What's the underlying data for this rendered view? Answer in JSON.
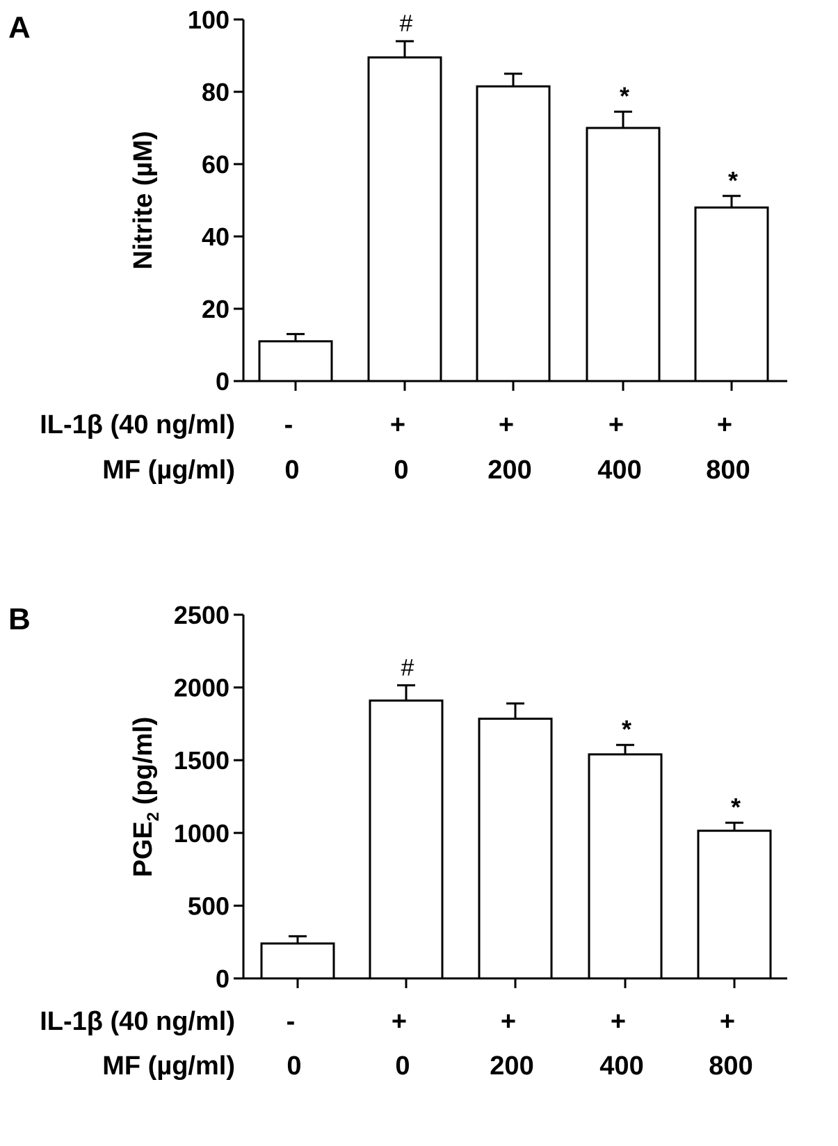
{
  "chart_data": [
    {
      "type": "bar",
      "panel_label": "A",
      "ylabel": "Nitrite (µM)",
      "ylim": [
        0,
        100
      ],
      "yticks": [
        0,
        20,
        40,
        60,
        80,
        100
      ],
      "row_labels": [
        "IL-1β (40 ng/ml)",
        "MF (µg/ml)"
      ],
      "categories": [
        {
          "il1b": "-",
          "mf": "0"
        },
        {
          "il1b": "+",
          "mf": "0"
        },
        {
          "il1b": "+",
          "mf": "200"
        },
        {
          "il1b": "+",
          "mf": "400"
        },
        {
          "il1b": "+",
          "mf": "800"
        }
      ],
      "values": [
        11,
        89.5,
        81.5,
        70,
        48
      ],
      "errors": [
        2,
        4.5,
        3.5,
        4.5,
        3.2
      ],
      "annotations": [
        "",
        "#",
        "",
        "*",
        "*"
      ]
    },
    {
      "type": "bar",
      "panel_label": "B",
      "ylabel_main": "PGE",
      "ylabel_sub": "2",
      "ylabel_rest": " (pg/ml)",
      "ylim": [
        0,
        2500
      ],
      "yticks": [
        0,
        500,
        1000,
        1500,
        2000,
        2500
      ],
      "row_labels": [
        "IL-1β (40 ng/ml)",
        "MF (µg/ml)"
      ],
      "categories": [
        {
          "il1b": "-",
          "mf": "0"
        },
        {
          "il1b": "+",
          "mf": "0"
        },
        {
          "il1b": "+",
          "mf": "200"
        },
        {
          "il1b": "+",
          "mf": "400"
        },
        {
          "il1b": "+",
          "mf": "800"
        }
      ],
      "values": [
        240,
        1910,
        1785,
        1540,
        1015
      ],
      "errors": [
        50,
        105,
        105,
        65,
        55
      ],
      "annotations": [
        "",
        "#",
        "",
        "*",
        "*"
      ]
    }
  ]
}
